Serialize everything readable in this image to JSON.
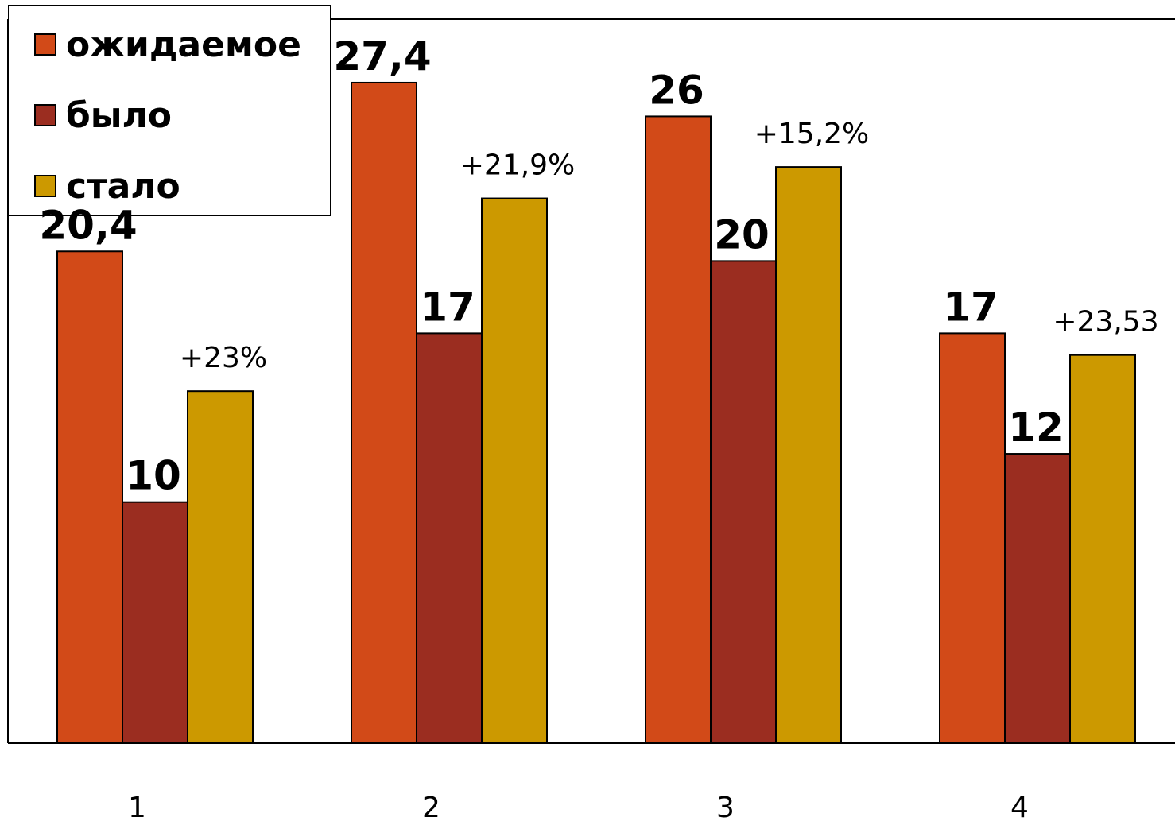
{
  "chart_data": {
    "type": "bar",
    "categories": [
      "1",
      "2",
      "3",
      "4"
    ],
    "series": [
      {
        "name": "ожидаемое",
        "color": "#d24a18",
        "values": [
          20.4,
          27.4,
          26,
          17
        ],
        "labels": [
          "20,4",
          "27,4",
          "26",
          "17"
        ]
      },
      {
        "name": "было",
        "color": "#9b2d20",
        "values": [
          10,
          17,
          20,
          12
        ],
        "labels": [
          "10",
          "17",
          "20",
          "12"
        ]
      },
      {
        "name": "стало",
        "color": "#cc9900",
        "values": [
          14.6,
          22.6,
          23.9,
          16.1
        ],
        "labels": [
          "+23%",
          "+21,9%",
          "+15,2%",
          "+23,53"
        ]
      }
    ],
    "ylim": [
      0,
      30
    ],
    "legend_position": "top-left",
    "grid": false
  }
}
